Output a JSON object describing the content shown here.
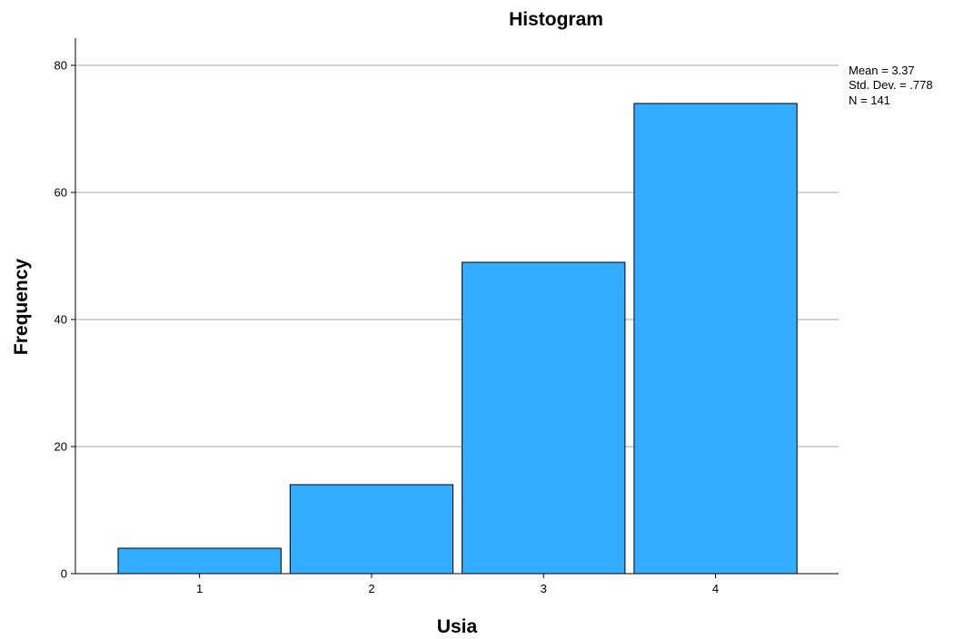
{
  "chart_data": {
    "type": "bar",
    "title": "Histogram",
    "xlabel": "Usia",
    "ylabel": "Frequency",
    "categories": [
      "1",
      "2",
      "3",
      "4"
    ],
    "values": [
      4,
      14,
      49,
      74
    ],
    "ylim": [
      0,
      84
    ],
    "yticks": [
      "0",
      "20",
      "40",
      "60",
      "80"
    ],
    "grid": true,
    "bar_color": "#33adff",
    "stats": {
      "mean": "Mean = 3.37",
      "std_dev": "Std. Dev. = .778",
      "n": "N = 141"
    },
    "stats_placement": "top-right"
  }
}
